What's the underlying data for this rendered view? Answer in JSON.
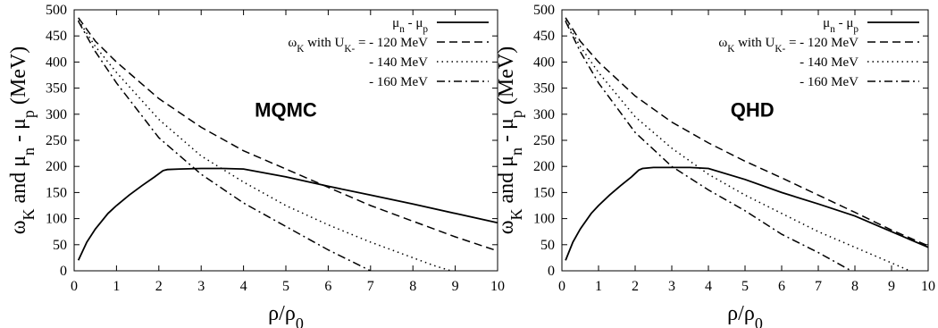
{
  "chart_data": [
    {
      "type": "line",
      "panel_label": "MQMC",
      "xlabel": "ρ/ρ0",
      "ylabel": "ωK and μn - μp (MeV)",
      "xlim": [
        0,
        10
      ],
      "ylim": [
        0,
        500
      ],
      "xticks": [
        "0",
        "1",
        "2",
        "3",
        "4",
        "5",
        "6",
        "7",
        "8",
        "9",
        "10"
      ],
      "yticks": [
        "0",
        "50",
        "100",
        "150",
        "200",
        "250",
        "300",
        "350",
        "400",
        "450",
        "500"
      ],
      "grid": false,
      "legend_position": "top-right",
      "legend": [
        {
          "label": "μn - μp",
          "style": "solid"
        },
        {
          "label": "ωK with UK- = - 120 MeV",
          "style": "dashed"
        },
        {
          "label": "- 140 MeV",
          "style": "dotted"
        },
        {
          "label": "- 160 MeV",
          "style": "dashdot"
        }
      ],
      "series": [
        {
          "style": "solid",
          "x": [
            0.1,
            0.3,
            0.5,
            0.8,
            1.0,
            1.3,
            1.6,
            1.9,
            2.1,
            2.2,
            2.5,
            3.0,
            3.5,
            4.0,
            5.0,
            6.0,
            7.0,
            8.0,
            9.0,
            10.0
          ],
          "y": [
            20,
            55,
            80,
            110,
            125,
            145,
            163,
            180,
            192,
            194,
            195,
            196,
            196,
            195,
            180,
            162,
            145,
            128,
            110,
            92
          ]
        },
        {
          "style": "dashed",
          "x": [
            0.1,
            0.5,
            1,
            2,
            3,
            4,
            5,
            6,
            7,
            8,
            9,
            10
          ],
          "y": [
            485,
            440,
            400,
            330,
            275,
            230,
            195,
            160,
            125,
            95,
            65,
            38
          ]
        },
        {
          "style": "dotted",
          "x": [
            0.1,
            0.5,
            1,
            2,
            3,
            4,
            5,
            6,
            7,
            8,
            8.5,
            8.9
          ],
          "y": [
            480,
            430,
            380,
            290,
            220,
            170,
            125,
            88,
            55,
            25,
            10,
            0
          ]
        },
        {
          "style": "dashdot",
          "x": [
            0.1,
            0.5,
            1,
            2,
            3,
            4,
            5,
            6,
            7.0
          ],
          "y": [
            478,
            420,
            360,
            255,
            185,
            130,
            85,
            40,
            0
          ]
        }
      ]
    },
    {
      "type": "line",
      "panel_label": "QHD",
      "xlabel": "ρ/ρ0",
      "ylabel": "ωK and μn - μp (MeV)",
      "xlim": [
        0,
        10
      ],
      "ylim": [
        0,
        500
      ],
      "xticks": [
        "0",
        "1",
        "2",
        "3",
        "4",
        "5",
        "6",
        "7",
        "8",
        "9",
        "10"
      ],
      "yticks": [
        "0",
        "50",
        "100",
        "150",
        "200",
        "250",
        "300",
        "350",
        "400",
        "450",
        "500"
      ],
      "grid": false,
      "legend_position": "top-right",
      "legend": [
        {
          "label": "μn - μp",
          "style": "solid"
        },
        {
          "label": "ωK with UK- = - 120 MeV",
          "style": "dashed"
        },
        {
          "label": "- 140 MeV",
          "style": "dotted"
        },
        {
          "label": "- 160 MeV",
          "style": "dashdot"
        }
      ],
      "series": [
        {
          "style": "solid",
          "x": [
            0.1,
            0.3,
            0.5,
            0.8,
            1.0,
            1.3,
            1.6,
            1.9,
            2.1,
            2.2,
            2.5,
            3.0,
            3.5,
            4.0,
            5.0,
            6.0,
            7.0,
            8.0,
            9.0,
            10.0
          ],
          "y": [
            20,
            55,
            80,
            110,
            125,
            145,
            163,
            180,
            193,
            196,
            198,
            198,
            198,
            196,
            175,
            150,
            128,
            105,
            75,
            45
          ]
        },
        {
          "style": "dashed",
          "x": [
            0.1,
            0.5,
            1,
            2,
            3,
            4,
            5,
            6,
            7,
            8,
            9,
            10
          ],
          "y": [
            485,
            440,
            400,
            335,
            285,
            245,
            210,
            178,
            145,
            112,
            78,
            48
          ]
        },
        {
          "style": "dotted",
          "x": [
            0.1,
            0.5,
            1,
            2,
            3,
            4,
            5,
            6,
            7,
            8,
            9,
            9.5
          ],
          "y": [
            480,
            430,
            380,
            295,
            235,
            185,
            145,
            110,
            75,
            45,
            15,
            0
          ]
        },
        {
          "style": "dashdot",
          "x": [
            0.1,
            0.5,
            1,
            2,
            3,
            4,
            5,
            6,
            7,
            7.9
          ],
          "y": [
            478,
            420,
            360,
            265,
            200,
            155,
            115,
            70,
            35,
            0
          ]
        }
      ]
    }
  ]
}
